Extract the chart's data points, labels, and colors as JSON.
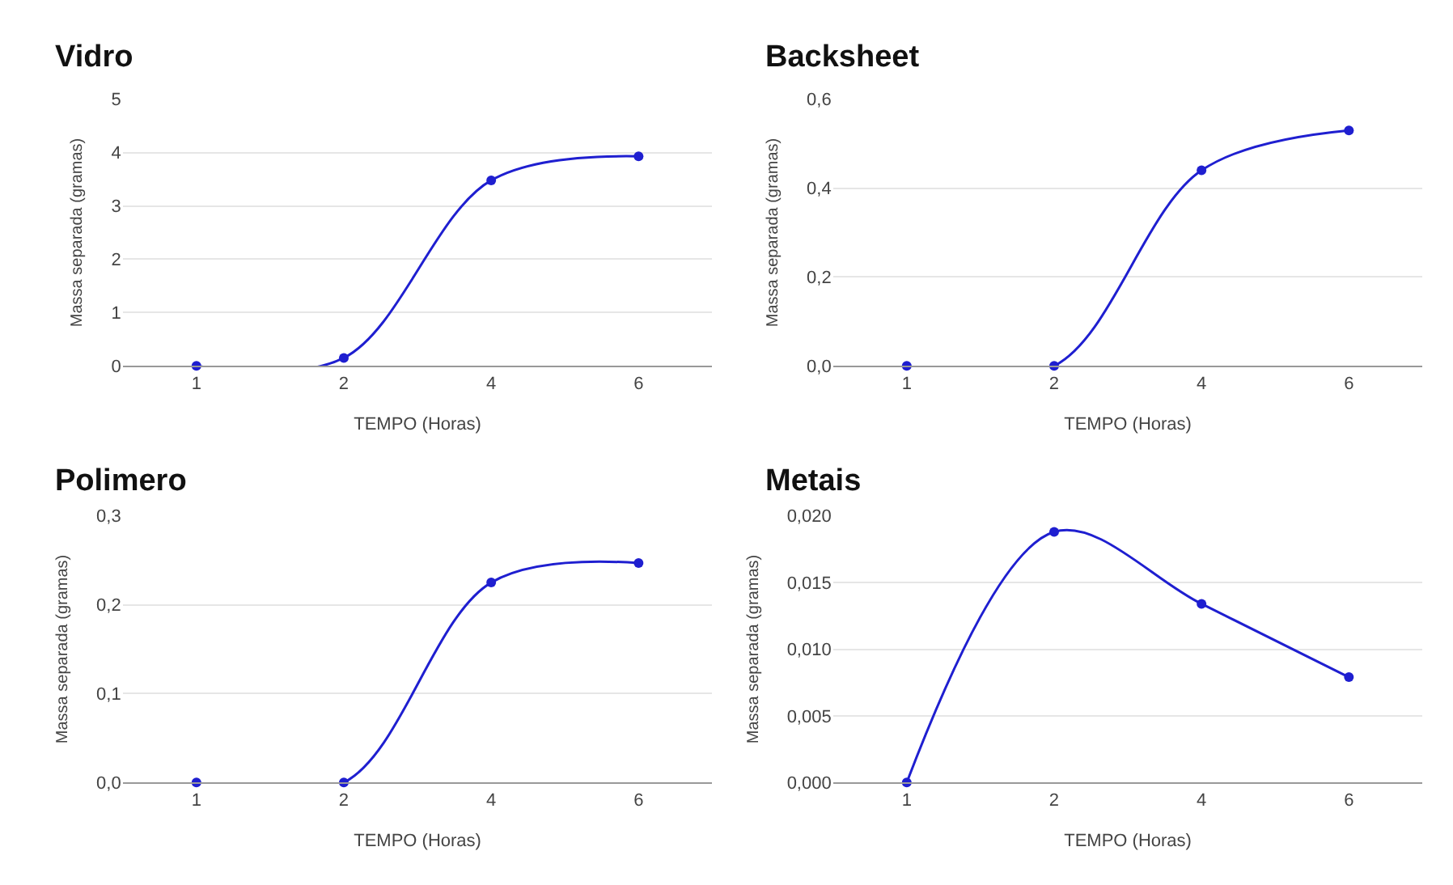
{
  "chart_data": [
    {
      "type": "line",
      "title": "Vidro",
      "xlabel": "TEMPO (Horas)",
      "ylabel": "Massa separada (gramas)",
      "categories": [
        "1",
        "2",
        "4",
        "6"
      ],
      "series": [
        {
          "color": "#1f1fd0",
          "values": [
            0,
            0.15,
            3.48,
            3.93
          ]
        }
      ],
      "ylim": [
        0,
        5
      ],
      "yticks": [
        0,
        1,
        2,
        3,
        4,
        5
      ],
      "grid": "y",
      "marker": "circle",
      "line_style": "solid"
    },
    {
      "type": "line",
      "title": "Backsheet",
      "xlabel": "TEMPO (Horas)",
      "ylabel": "Massa separada (gramas)",
      "categories": [
        "1",
        "2",
        "4",
        "6"
      ],
      "series": [
        {
          "color": "#1f1fd0",
          "values": [
            0,
            0,
            0.44,
            0.53
          ]
        }
      ],
      "ylim": [
        0,
        0.6
      ],
      "yticks": [
        {
          "value": 0,
          "label": "0,0"
        },
        {
          "value": 0.2,
          "label": "0,2"
        },
        {
          "value": 0.4,
          "label": "0,4"
        },
        {
          "value": 0.6,
          "label": "0,6"
        }
      ],
      "grid": "y",
      "marker": "circle",
      "line_style": "solid"
    },
    {
      "type": "line",
      "title": "Polimero",
      "xlabel": "TEMPO (Horas)",
      "ylabel": "Massa separada (gramas)",
      "categories": [
        "1",
        "2",
        "4",
        "6"
      ],
      "series": [
        {
          "color": "#1f1fd0",
          "values": [
            0,
            0,
            0.225,
            0.247
          ]
        }
      ],
      "ylim": [
        0,
        0.3
      ],
      "yticks": [
        {
          "value": 0,
          "label": "0,0"
        },
        {
          "value": 0.1,
          "label": "0,1"
        },
        {
          "value": 0.2,
          "label": "0,2"
        },
        {
          "value": 0.3,
          "label": "0,3"
        }
      ],
      "grid": "y",
      "marker": "circle",
      "line_style": "solid"
    },
    {
      "type": "line",
      "title": "Metais",
      "xlabel": "TEMPO (Horas)",
      "ylabel": "Massa separada (gramas)",
      "categories": [
        "1",
        "2",
        "4",
        "6"
      ],
      "series": [
        {
          "color": "#1f1fd0",
          "values": [
            0,
            0.0188,
            0.0134,
            0.0079
          ]
        }
      ],
      "ylim": [
        0,
        0.02
      ],
      "yticks": [
        {
          "value": 0,
          "label": "0,000"
        },
        {
          "value": 0.005,
          "label": "0,005"
        },
        {
          "value": 0.01,
          "label": "0,010"
        },
        {
          "value": 0.015,
          "label": "0,015"
        },
        {
          "value": 0.02,
          "label": "0,020"
        }
      ],
      "grid": "y",
      "marker": "circle",
      "line_style": "solid"
    }
  ]
}
